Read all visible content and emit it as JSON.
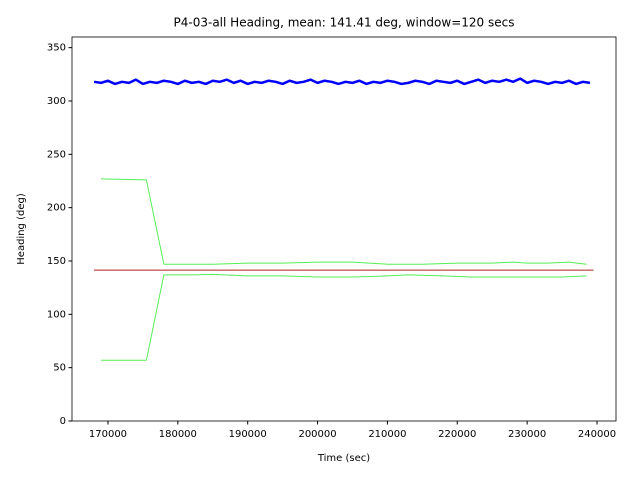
{
  "chart_data": {
    "type": "line",
    "title": "P4-03-all Heading, mean: 141.41 deg, window=120 secs",
    "x_label": "Time (sec)",
    "y_label": "Heading (deg)",
    "xlim": [
      164850,
      242720
    ],
    "xticks": [
      170000,
      180000,
      190000,
      200000,
      210000,
      220000,
      230000,
      240000
    ],
    "ylim": [
      0,
      360
    ],
    "yticks": [
      0,
      50,
      100,
      150,
      200,
      250,
      300,
      350
    ],
    "grid": false,
    "series": [
      {
        "color": "#0000ff",
        "x": [
          168000,
          169000,
          170000,
          171000,
          172000,
          173000,
          174000,
          175000,
          176000,
          177000,
          178000,
          179000,
          180000,
          181000,
          182000,
          183000,
          184000,
          185000,
          186000,
          187000,
          188000,
          189000,
          190000,
          191000,
          192000,
          193000,
          194000,
          195000,
          196000,
          197000,
          198000,
          199000,
          200000,
          201000,
          202000,
          203000,
          204000,
          205000,
          206000,
          207000,
          208000,
          209000,
          210000,
          211000,
          212000,
          213000,
          214000,
          215000,
          216000,
          217000,
          218000,
          219000,
          220000,
          221000,
          222000,
          223000,
          224000,
          225000,
          226000,
          227000,
          228000,
          229000,
          230000,
          231000,
          232000,
          233000,
          234000,
          235000,
          236000,
          237000,
          238000,
          239000
        ],
        "values": [
          318,
          317,
          319,
          316,
          318,
          317,
          320,
          316,
          318,
          317,
          319,
          318,
          316,
          319,
          317,
          318,
          316,
          319,
          318,
          320,
          317,
          319,
          316,
          318,
          317,
          319,
          318,
          316,
          319,
          317,
          318,
          320,
          317,
          319,
          318,
          316,
          318,
          317,
          319,
          316,
          318,
          317,
          319,
          318,
          316,
          317,
          319,
          318,
          316,
          319,
          318,
          317,
          319,
          316,
          318,
          320,
          317,
          319,
          318,
          320,
          318,
          321,
          317,
          319,
          318,
          316,
          318,
          317,
          319,
          316,
          318,
          317
        ]
      },
      {
        "color": "#b22222",
        "x": [
          168000,
          239500
        ],
        "values": [
          141.41,
          141.41
        ]
      },
      {
        "color": "#55ee55",
        "x": [
          169000,
          175500,
          178000,
          185000,
          190000,
          195000,
          200000,
          205000,
          210000,
          215000,
          220000,
          225000,
          228000,
          230000,
          233000,
          236000,
          238500
        ],
        "values": [
          227,
          226,
          147,
          147,
          148,
          148,
          149,
          149,
          147,
          147,
          148,
          148,
          149,
          148,
          148,
          149,
          147
        ]
      },
      {
        "color": "#55ee55",
        "x": [
          169000,
          175500,
          178000,
          182000,
          185000,
          190000,
          195000,
          200000,
          205000,
          210000,
          213000,
          218000,
          222000,
          226000,
          230000,
          235000,
          238500
        ],
        "values": [
          57,
          57,
          137,
          137,
          137.5,
          136,
          136,
          135,
          135,
          136,
          137,
          136,
          135,
          135,
          135,
          135,
          136
        ]
      }
    ]
  }
}
